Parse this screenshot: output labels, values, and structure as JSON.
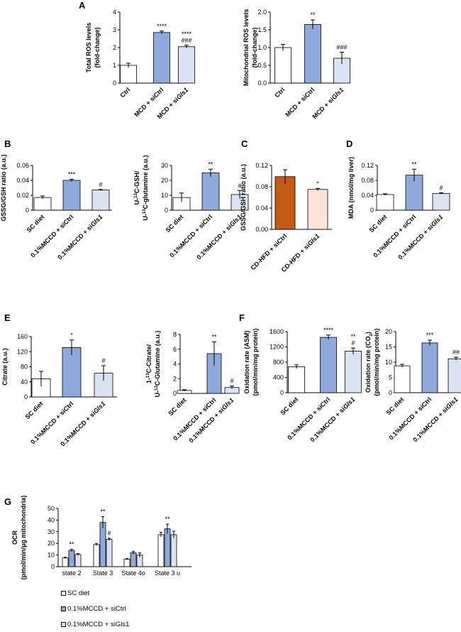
{
  "colors": {
    "ctrl": "#ffffff",
    "sictrl": "#8ea9db",
    "sigls1": "#dae3f3",
    "cdhfd_sictrl": "#c55a11",
    "cdhfd_sigls1": "#fbe5d6",
    "axis": "#000000"
  },
  "panel_letters": [
    "A",
    "B",
    "C",
    "D",
    "E",
    "F",
    "G"
  ],
  "legend": {
    "items": [
      {
        "label": "SC diet",
        "color": "#ffffff"
      },
      {
        "label": "0.1%MCCD + siCtrl",
        "color": "#8ea9db"
      },
      {
        "label": "0.1%MCCD + siGls1",
        "color": "#dae3f3"
      }
    ]
  },
  "chart_data": [
    {
      "panel": "A",
      "type": "bar",
      "ylabel": [
        "Total ROS levels",
        "(fold-change)"
      ],
      "categories": [
        "Ctrl",
        "MCD + siCtrl",
        "MCD + siGls1"
      ],
      "values": [
        1.0,
        2.85,
        2.05
      ],
      "errors": [
        0.12,
        0.08,
        0.08
      ],
      "annotations": [
        [],
        [
          "****"
        ],
        [
          "****",
          "###"
        ]
      ],
      "ylim": [
        0,
        4
      ],
      "yticks": [
        0,
        1,
        2,
        3,
        4
      ],
      "ytick_labels": [
        "0",
        "1",
        "2",
        "3",
        "4"
      ]
    },
    {
      "panel": "A",
      "type": "bar",
      "ylabel": [
        "Mitochondrial ROS levels",
        "(fold-change)"
      ],
      "categories": [
        "Ctrl",
        "MCD + siCtrl",
        "MCD + siGls1"
      ],
      "values": [
        1.0,
        1.65,
        0.7
      ],
      "errors": [
        0.09,
        0.13,
        0.17
      ],
      "annotations": [
        [],
        [
          "**"
        ],
        [
          "###"
        ]
      ],
      "ylim": [
        0,
        2
      ],
      "yticks": [
        0,
        0.5,
        1.0,
        1.5,
        2.0
      ],
      "ytick_labels": [
        "0.0",
        "0.5",
        "1.0",
        "1.5",
        "2.0"
      ]
    },
    {
      "panel": "B",
      "type": "bar",
      "ylabel": [
        "GSSG/GSH ratio (a.u.)"
      ],
      "categories": [
        "SC diet",
        "0.1%MCCD + siCtrl",
        "0.1%MCCD + siGls1"
      ],
      "values": [
        0.017,
        0.04,
        0.027
      ],
      "errors": [
        0.002,
        0.0015,
        0.0008
      ],
      "annotations": [
        [],
        [
          "***"
        ],
        [
          "#"
        ]
      ],
      "ylim": [
        0,
        0.06
      ],
      "yticks": [
        0,
        0.02,
        0.04,
        0.06
      ],
      "ytick_labels": [
        "0",
        "0.02",
        "0.04",
        "0.06"
      ]
    },
    {
      "panel": "B",
      "type": "bar",
      "ylabel": [
        "U-13C-GSH/",
        "U-13C-glutamine (a.u.)"
      ],
      "categories": [
        "SC diet",
        "0.1%MCCD + siCtrl",
        "0.1%MCCD + siGls1"
      ],
      "values": [
        8.5,
        25,
        10.5
      ],
      "errors": [
        3,
        2.5,
        2.7
      ],
      "annotations": [
        [],
        [
          "**"
        ],
        [
          "#"
        ]
      ],
      "ylim": [
        0,
        30
      ],
      "yticks": [
        0,
        10,
        20,
        30
      ],
      "ytick_labels": [
        "0",
        "10",
        "20",
        "30"
      ]
    },
    {
      "panel": "C",
      "type": "bar",
      "ylabel": [
        "GSSG/GSH ratio (a.u.)"
      ],
      "categories": [
        "CD-HFD + siCtrl",
        "CD-HFD + siGls1"
      ],
      "values": [
        0.099,
        0.075
      ],
      "errors": [
        0.013,
        0.002
      ],
      "annotations": [
        [],
        [
          "*"
        ]
      ],
      "ylim": [
        0,
        0.12
      ],
      "yticks": [
        0,
        0.04,
        0.08,
        0.12
      ],
      "ytick_labels": [
        "0.00",
        "0.04",
        "0.08",
        "0.12"
      ]
    },
    {
      "panel": "D",
      "type": "bar",
      "ylabel": [
        "MDA (nmol/mg liver)"
      ],
      "categories": [
        "SC diet",
        "0.1%MCCD + siCtrl",
        "0.1%MCCD + siGls1"
      ],
      "values": [
        0.042,
        0.094,
        0.045
      ],
      "errors": [
        0.002,
        0.016,
        0.002
      ],
      "annotations": [
        [],
        [
          "**"
        ],
        [
          "#"
        ]
      ],
      "ylim": [
        0,
        0.12
      ],
      "yticks": [
        0,
        0.04,
        0.08,
        0.12
      ],
      "ytick_labels": [
        "0",
        "0.04",
        "0.08",
        "0.12"
      ]
    },
    {
      "panel": "E",
      "type": "bar",
      "ylabel": [
        "Citrate (a.u.)"
      ],
      "categories": [
        "SC diet",
        "0.1%MCCD + siCtrl",
        "0.1%MCCD + siGls1"
      ],
      "values": [
        48,
        131,
        63
      ],
      "errors": [
        20,
        20,
        20
      ],
      "annotations": [
        [],
        [
          "*"
        ],
        [
          "#"
        ]
      ],
      "ylim": [
        0,
        160
      ],
      "yticks": [
        0,
        40,
        80,
        120,
        160
      ],
      "ytick_labels": [
        "0",
        "40",
        "80",
        "120",
        "160"
      ]
    },
    {
      "panel": "E",
      "type": "bar",
      "ylabel": [
        "1-13C-Citrate/",
        "U-13C-Glutamine (a.u.)"
      ],
      "categories": [
        "SC diet",
        "0.1%MCCD + siCtrl",
        "0.1%MCCD + siGls1"
      ],
      "values": [
        0.4,
        5.4,
        0.8
      ],
      "errors": [
        0.1,
        1.6,
        0.2
      ],
      "annotations": [
        [],
        [
          "**"
        ],
        [
          "#"
        ]
      ],
      "ylim": [
        0,
        8
      ],
      "yticks": [
        0,
        2,
        4,
        6,
        8
      ],
      "ytick_labels": [
        "0",
        "2",
        "4",
        "6",
        "8"
      ]
    },
    {
      "panel": "F",
      "type": "bar",
      "ylabel": [
        "Oxidation rate (ASM)",
        "(pmol/min/mg protein)"
      ],
      "categories": [
        "SC diet",
        "0.1%MCCD + siCtrl",
        "0.1%MCCD + siGls1"
      ],
      "values": [
        680,
        1450,
        1090
      ],
      "errors": [
        50,
        60,
        80
      ],
      "annotations": [
        [],
        [
          "****"
        ],
        [
          "**",
          "#"
        ]
      ],
      "ylim": [
        0,
        1600
      ],
      "yticks": [
        0,
        400,
        800,
        1200,
        1600
      ],
      "ytick_labels": [
        "0",
        "400",
        "800",
        "1200",
        "1600"
      ]
    },
    {
      "panel": "F",
      "type": "bar",
      "ylabel": [
        "Oxidation rate (CO2)",
        "(pmol/min/mg protein)"
      ],
      "categories": [
        "SC diet",
        "0.1%MCCD + siCtrl",
        "0.1%MCCD + siGls1"
      ],
      "values": [
        8.8,
        16.3,
        11.1
      ],
      "errors": [
        0.5,
        0.9,
        0.5
      ],
      "annotations": [
        [],
        [
          "***"
        ],
        [
          "##"
        ]
      ],
      "ylim": [
        0,
        20
      ],
      "yticks": [
        0,
        5,
        10,
        15,
        20
      ],
      "ytick_labels": [
        "0",
        "5",
        "10",
        "15",
        "20"
      ]
    },
    {
      "panel": "G",
      "type": "bar",
      "ylabel": [
        "OCR",
        "(pmol/min/µg mitochondria)"
      ],
      "categories": [
        "state 2",
        "State 3",
        "State 4o",
        "State 3 u"
      ],
      "series": [
        {
          "name": "SC diet",
          "values": [
            7.5,
            19,
            6.5,
            27.5
          ],
          "errors": [
            0.6,
            1,
            0.5,
            2
          ]
        },
        {
          "name": "0.1%MCCD + siCtrl",
          "values": [
            14,
            38,
            12,
            32.5
          ],
          "errors": [
            1,
            5,
            1.2,
            4
          ]
        },
        {
          "name": "0.1%MCCD + siGls1",
          "values": [
            10.5,
            23.5,
            10,
            27.5
          ],
          "errors": [
            0.8,
            1,
            1.8,
            3
          ]
        }
      ],
      "annotations": [
        [
          "**"
        ],
        [
          "**",
          "#"
        ],
        [],
        [
          "**"
        ]
      ],
      "ylim": [
        0,
        50
      ],
      "yticks": [
        0,
        10,
        20,
        30,
        40,
        50
      ],
      "ytick_labels": [
        "0",
        "10",
        "20",
        "30",
        "40",
        "50"
      ]
    }
  ]
}
